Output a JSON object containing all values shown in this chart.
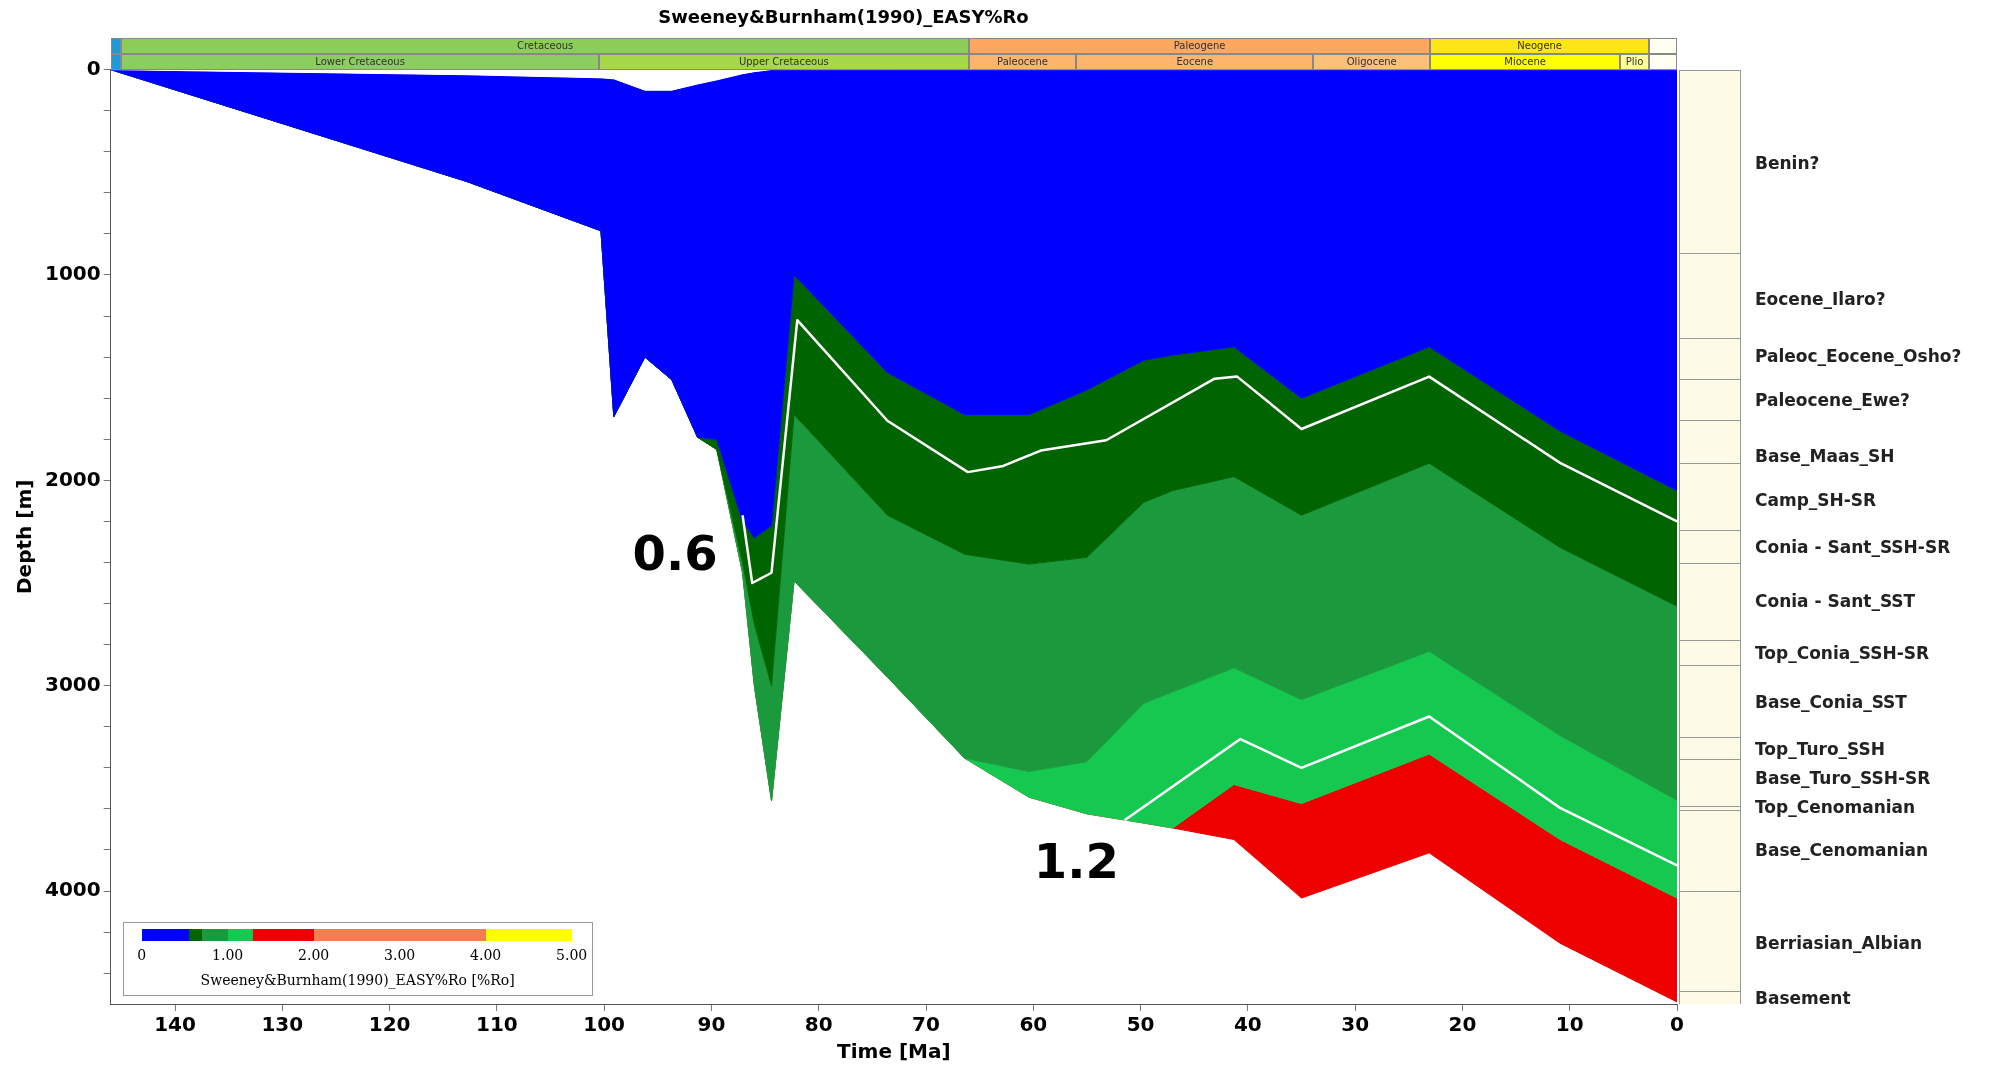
{
  "chart_data": {
    "type": "area",
    "title": "Sweeney&Burnham(1990)_EASY%Ro",
    "xlabel": "Time [Ma]",
    "ylabel": "Depth [m]",
    "x": [
      146,
      112.8,
      100.3,
      99.1,
      96.2,
      93.7,
      91.3,
      89.5,
      87.1,
      86,
      84.4,
      82.3,
      73.6,
      66.4,
      60.4,
      55,
      49.7,
      47,
      41.3,
      35,
      23.1,
      10.9,
      0
    ],
    "series": [
      {
        "color": "#ffffff",
        "values": [
          0,
          25,
          40,
          45,
          100,
          100,
          70,
          50,
          20,
          10,
          0,
          0,
          0,
          0,
          0,
          0,
          0,
          0,
          0,
          0,
          0,
          0,
          0
        ]
      },
      {
        "color": "#0000ff",
        "values": [
          0,
          545,
          785,
          1690,
          1400,
          1510,
          1790,
          1800,
          2200,
          2280,
          2220,
          1000,
          1475,
          1680,
          1680,
          1560,
          1415,
          1390,
          1350,
          1600,
          1350,
          1760,
          2050
        ]
      },
      {
        "color": "#006400",
        "values": [
          0,
          545,
          785,
          1690,
          1400,
          1510,
          1790,
          1850,
          2400,
          2700,
          3000,
          1680,
          2170,
          2360,
          2408,
          2375,
          2107,
          2050,
          1982,
          2170,
          1917,
          2327,
          2613
        ]
      },
      {
        "color": "#1a9a3c",
        "values": [
          0,
          545,
          785,
          1690,
          1400,
          1510,
          1790,
          1850,
          2450,
          3000,
          3560,
          2490,
          2958,
          3353,
          3418,
          3370,
          3086,
          3030,
          2913,
          3068,
          2833,
          3243,
          3558
        ]
      },
      {
        "color": "#14c850",
        "values": [
          0,
          545,
          785,
          1690,
          1400,
          1510,
          1790,
          1850,
          2450,
          3000,
          3560,
          2490,
          2958,
          3353,
          3543,
          3624,
          3669,
          3693,
          3481,
          3574,
          3333,
          3749,
          4034
        ]
      },
      {
        "color": "#ee0000",
        "values": [
          0,
          545,
          785,
          1690,
          1400,
          1510,
          1790,
          1850,
          2450,
          3000,
          3560,
          2490,
          2958,
          3353,
          3543,
          3624,
          3669,
          3693,
          3749,
          4034,
          3814,
          4254,
          4540
        ]
      },
      {
        "type": "line",
        "color": "#ffffff",
        "x": [
          87.1,
          86.2,
          84.4,
          82,
          73.6,
          66.1,
          62.8,
          59.3,
          53.2,
          43.1,
          41,
          35,
          23.1,
          10.9,
          0
        ],
        "values": [
          2170,
          2500,
          2450,
          1220,
          1710,
          1960,
          1930,
          1855,
          1805,
          1505,
          1495,
          1750,
          1495,
          1915,
          2200
        ]
      },
      {
        "type": "line",
        "color": "#ffffff",
        "x": [
          51.5,
          40.7,
          35,
          23.1,
          10.9,
          0
        ],
        "values": [
          3655,
          3260,
          3400,
          3150,
          3595,
          3875
        ]
      }
    ],
    "xlim": [
      146,
      0
    ],
    "xticks": [
      140,
      130,
      120,
      110,
      100,
      90,
      80,
      70,
      60,
      50,
      40,
      30,
      20,
      10,
      0
    ],
    "ylim": [
      4550,
      0
    ],
    "yticks": [
      0,
      {
        "value": 200,
        "label": null
      },
      {
        "value": 400,
        "label": null
      },
      {
        "value": 600,
        "label": null
      },
      {
        "value": 800,
        "label": null
      },
      1000,
      {
        "value": 1200,
        "label": null
      },
      {
        "value": 1400,
        "label": null
      },
      {
        "value": 1600,
        "label": null
      },
      {
        "value": 1800,
        "label": null
      },
      2000,
      {
        "value": 2200,
        "label": null
      },
      {
        "value": 2400,
        "label": null
      },
      {
        "value": 2600,
        "label": null
      },
      {
        "value": 2800,
        "label": null
      },
      3000,
      {
        "value": 3200,
        "label": null
      },
      {
        "value": 3400,
        "label": null
      },
      {
        "value": 3600,
        "label": null
      },
      {
        "value": 3800,
        "label": null
      },
      4000,
      {
        "value": 4200,
        "label": null
      },
      {
        "value": 4400,
        "label": null
      }
    ],
    "annotations": [
      {
        "text": "0.6",
        "x": 87.1,
        "y": 2170
      },
      {
        "text": "1.2",
        "x": 49.7,
        "y": 3669
      },
      "0",
      "1.00",
      "2.00",
      "3.00",
      "4.00",
      "5.00",
      "Cretaceous",
      "Paleogene",
      "Neogene",
      "Lower Cretaceous",
      "Upper Cretaceous",
      "Paleocene",
      "Eocene",
      "Oligocene",
      "Miocene",
      "Plio",
      "Benin?",
      "Eocene_Ilaro?",
      "Paleoc_Eocene_Osho?",
      "Paleocene_Ewe?",
      "Base_Maas_SH",
      "Camp_SH-SR",
      "Conia - Sant_SSH-SR",
      "Conia - Sant_SST",
      "Top_Conia_SSH-SR",
      "Base_Conia_SST",
      "Top_Turo_SSH",
      "Base_Turo_SSH-SR",
      "Top_Cenomanian",
      "Base_Cenomanian",
      "Berriasian_Albian",
      "Basement"
    ],
    "clabel": "Sweeney&Burnham(1990)_EASY%Ro [%Ro]"
  }
}
